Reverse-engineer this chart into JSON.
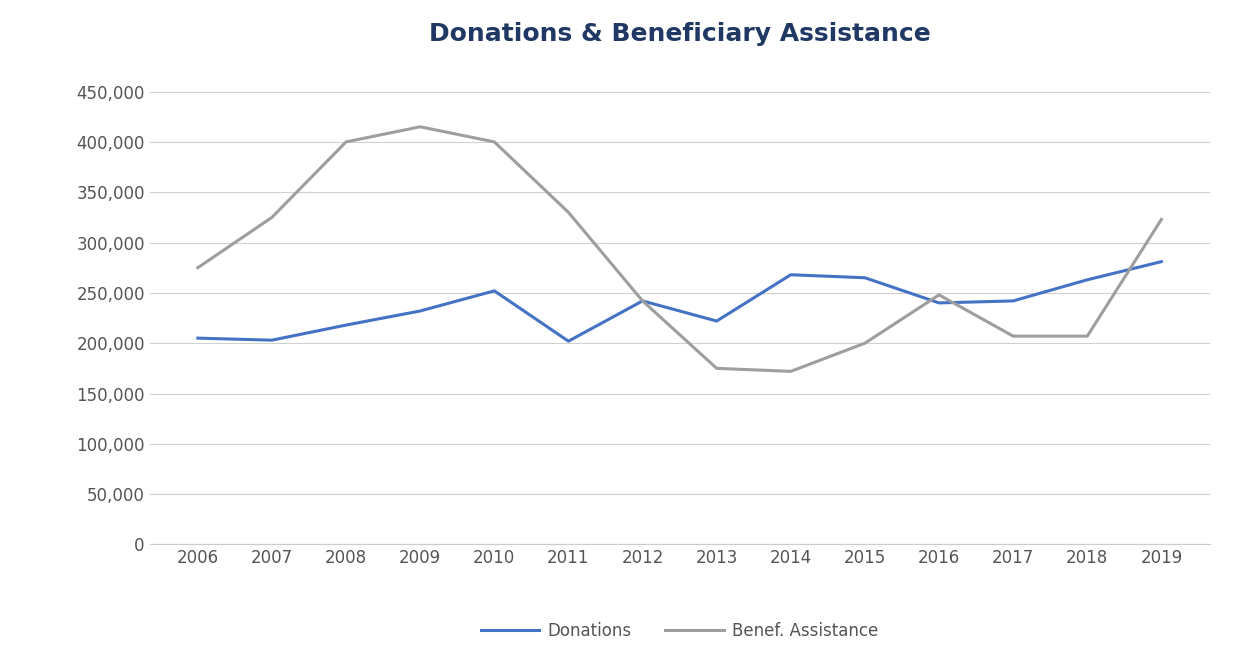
{
  "title": "Donations & Beneficiary Assistance",
  "years": [
    2006,
    2007,
    2008,
    2009,
    2010,
    2011,
    2012,
    2013,
    2014,
    2015,
    2016,
    2017,
    2018,
    2019
  ],
  "donations": [
    205000,
    203000,
    218000,
    232000,
    252000,
    202000,
    242000,
    222000,
    268000,
    265000,
    240000,
    242000,
    263000,
    281000
  ],
  "benef_assistance": [
    275000,
    325000,
    400000,
    415000,
    400000,
    330000,
    242000,
    175000,
    172000,
    200000,
    248000,
    207000,
    207000,
    323000
  ],
  "donations_color": "#4472C4",
  "benef_color": "#9E9E9E",
  "title_color": "#1F3864",
  "ylim": [
    0,
    475000
  ],
  "yticks": [
    0,
    50000,
    100000,
    150000,
    200000,
    250000,
    300000,
    350000,
    400000,
    450000
  ],
  "donations_label": "Donations",
  "benef_label": "Benef. Assistance",
  "bg_color": "#ffffff",
  "grid_color": "#d0d0d0",
  "title_fontsize": 18,
  "tick_fontsize": 12,
  "legend_fontsize": 12,
  "line_width": 2.2
}
